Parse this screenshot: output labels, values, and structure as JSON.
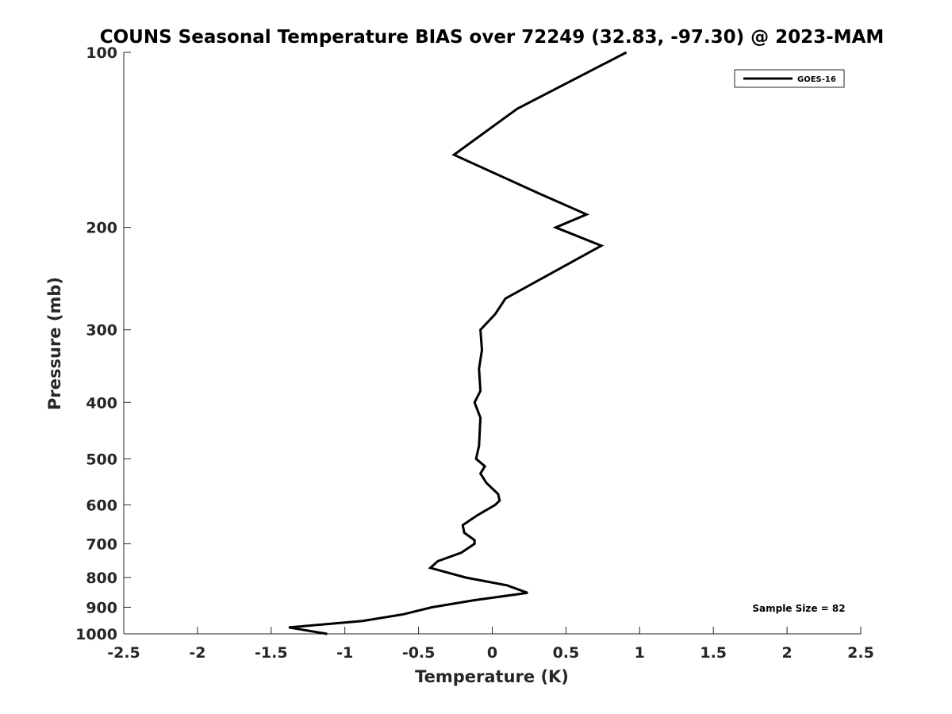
{
  "chart_data": {
    "type": "line",
    "title": "COUNS Seasonal Temperature BIAS over 72249 (32.83, -97.30) @ 2023-MAM",
    "xlabel": "Temperature (K)",
    "ylabel": "Pressure (mb)",
    "xlim": [
      -2.5,
      2.5
    ],
    "ylim": [
      1000,
      100
    ],
    "yscale": "log",
    "xticks": [
      -2.5,
      -2,
      -1.5,
      -1,
      -0.5,
      0,
      0.5,
      1,
      1.5,
      2,
      2.5
    ],
    "xtick_labels": [
      "-2.5",
      "-2",
      "-1.5",
      "-1",
      "-0.5",
      "0",
      "0.5",
      "1",
      "1.5",
      "2",
      "2.5"
    ],
    "yticks": [
      100,
      200,
      300,
      400,
      500,
      600,
      700,
      800,
      900,
      1000
    ],
    "ytick_labels": [
      "100",
      "200",
      "300",
      "400",
      "500",
      "600",
      "700",
      "800",
      "900",
      "1000"
    ],
    "grid": false,
    "legend_position": "top-right",
    "annotation": "Sample Size = 82",
    "series": [
      {
        "name": "GOES-16",
        "color": "#000000",
        "points": [
          {
            "t": 0.91,
            "p": 100
          },
          {
            "t": 0.17,
            "p": 125
          },
          {
            "t": -0.26,
            "p": 150
          },
          {
            "t": 0.32,
            "p": 175
          },
          {
            "t": 0.64,
            "p": 190
          },
          {
            "t": 0.43,
            "p": 200
          },
          {
            "t": 0.74,
            "p": 215
          },
          {
            "t": 0.09,
            "p": 265
          },
          {
            "t": 0.02,
            "p": 282
          },
          {
            "t": -0.08,
            "p": 300
          },
          {
            "t": -0.07,
            "p": 325
          },
          {
            "t": -0.09,
            "p": 350
          },
          {
            "t": -0.08,
            "p": 382
          },
          {
            "t": -0.12,
            "p": 400
          },
          {
            "t": -0.08,
            "p": 425
          },
          {
            "t": -0.09,
            "p": 475
          },
          {
            "t": -0.11,
            "p": 500
          },
          {
            "t": -0.05,
            "p": 515
          },
          {
            "t": -0.08,
            "p": 530
          },
          {
            "t": -0.04,
            "p": 550
          },
          {
            "t": 0.04,
            "p": 575
          },
          {
            "t": 0.05,
            "p": 590
          },
          {
            "t": 0.02,
            "p": 600
          },
          {
            "t": -0.1,
            "p": 625
          },
          {
            "t": -0.2,
            "p": 650
          },
          {
            "t": -0.19,
            "p": 670
          },
          {
            "t": -0.12,
            "p": 690
          },
          {
            "t": -0.12,
            "p": 700
          },
          {
            "t": -0.21,
            "p": 725
          },
          {
            "t": -0.37,
            "p": 750
          },
          {
            "t": -0.42,
            "p": 770
          },
          {
            "t": -0.3,
            "p": 785
          },
          {
            "t": -0.18,
            "p": 800
          },
          {
            "t": 0.1,
            "p": 825
          },
          {
            "t": 0.24,
            "p": 850
          },
          {
            "t": -0.12,
            "p": 875
          },
          {
            "t": -0.41,
            "p": 900
          },
          {
            "t": -0.6,
            "p": 925
          },
          {
            "t": -0.88,
            "p": 950
          },
          {
            "t": -1.38,
            "p": 975
          },
          {
            "t": -1.12,
            "p": 1000
          }
        ]
      }
    ]
  }
}
